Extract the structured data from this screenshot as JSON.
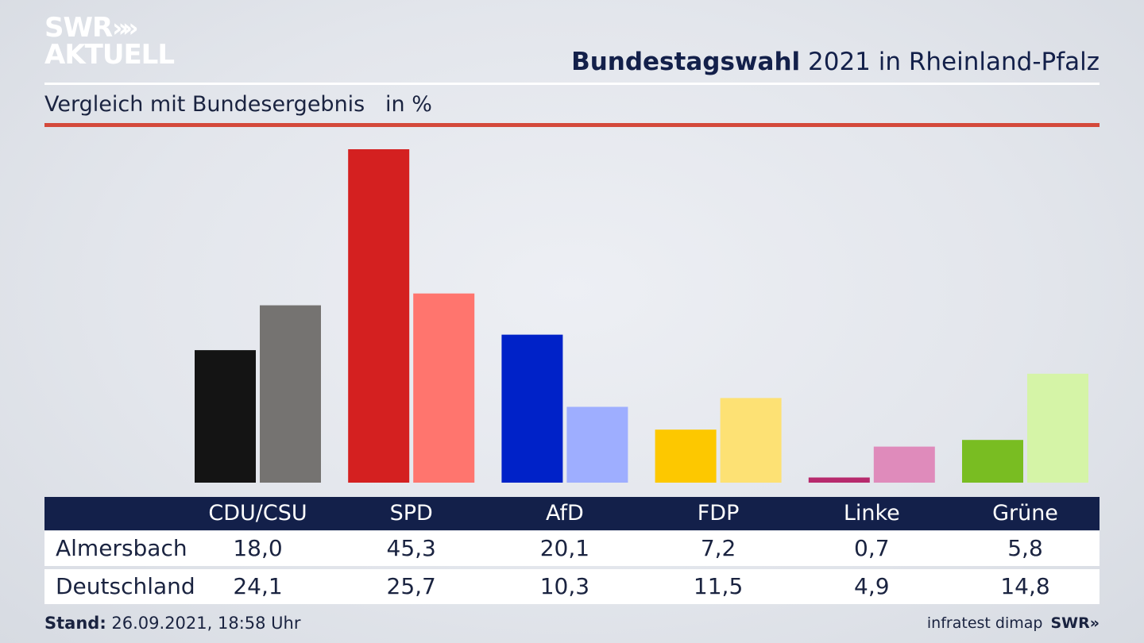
{
  "header": {
    "logo_line1": "SWR",
    "logo_chevrons": "»",
    "logo_line2": "AKTUELL",
    "title_bold": "Bundestagswahl",
    "title_rest": " 2021 in Rheinland-Pfalz",
    "subtitle": "Vergleich mit Bundesergebnis   in %"
  },
  "colors": {
    "navy": "#13204a",
    "accent_red": "#d4493b"
  },
  "chart_data": {
    "type": "bar",
    "categories": [
      "CDU/CSU",
      "SPD",
      "AfD",
      "FDP",
      "Linke",
      "Grüne"
    ],
    "series": [
      {
        "name": "Almersbach",
        "values": [
          18.0,
          45.3,
          20.1,
          7.2,
          0.7,
          5.8
        ],
        "display": [
          "18,0",
          "45,3",
          "20,1",
          "7,2",
          "0,7",
          "5,8"
        ],
        "colors": [
          "#141414",
          "#d42020",
          "#0022c8",
          "#fdc800",
          "#b72a6d",
          "#79bd22"
        ]
      },
      {
        "name": "Deutschland",
        "values": [
          24.1,
          25.7,
          10.3,
          11.5,
          4.9,
          14.8
        ],
        "display": [
          "24,1",
          "25,7",
          "10,3",
          "11,5",
          "4,9",
          "14,8"
        ],
        "colors": [
          "#757371",
          "#ff756e",
          "#9eaeff",
          "#fde174",
          "#df8bbb",
          "#d5f4a7"
        ]
      }
    ],
    "ylim": [
      0,
      45.3
    ],
    "xlabel": "",
    "ylabel": "",
    "legend": "table-below",
    "grid": false
  },
  "footer": {
    "stand_label": "Stand:",
    "stand_value": " 26.09.2021, 18:58 Uhr",
    "source": "infratest dimap",
    "source_logo": "SWR»"
  }
}
